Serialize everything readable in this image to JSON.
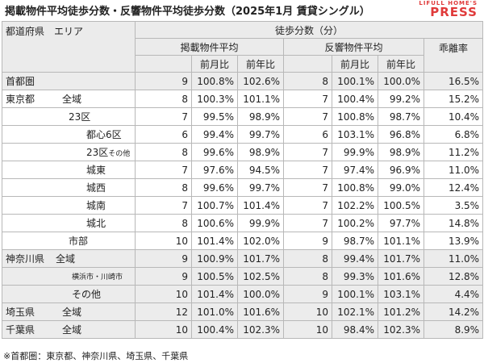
{
  "title": "掲載物件平均徒歩分数・反響物件平均徒歩分数（2025年1月 賃貸シングル）",
  "logo": {
    "top": "LIFULL HOME'S",
    "bottom": "PRESS"
  },
  "headers": {
    "area": "都道府県　エリア",
    "walk_minutes": "徒歩分数（分）",
    "listed_avg": "掲載物件平均",
    "response_avg": "反響物件平均",
    "divergence": "乖離率",
    "mom": "前月比",
    "yoy": "前年比"
  },
  "rows": [
    {
      "pref": "首都圏",
      "area": "",
      "l_min": "9",
      "l_mom": "100.8%",
      "l_yoy": "102.6%",
      "r_min": "8",
      "r_mom": "100.1%",
      "r_yoy": "100.0%",
      "div": "16.5%"
    },
    {
      "pref": "東京都",
      "area": "全域",
      "l_min": "8",
      "l_mom": "100.3%",
      "l_yoy": "101.1%",
      "r_min": "7",
      "r_mom": "100.4%",
      "r_yoy": "99.2%",
      "div": "15.2%"
    },
    {
      "pref": "",
      "area": "23区",
      "l_min": "7",
      "l_mom": "99.5%",
      "l_yoy": "98.9%",
      "r_min": "7",
      "r_mom": "100.8%",
      "r_yoy": "98.7%",
      "div": "10.4%"
    },
    {
      "pref": "",
      "area": "都心6区",
      "l_min": "6",
      "l_mom": "99.4%",
      "l_yoy": "99.7%",
      "r_min": "6",
      "r_mom": "103.1%",
      "r_yoy": "96.8%",
      "div": "6.8%"
    },
    {
      "pref": "",
      "area": "23区",
      "area_suffix": "その他",
      "l_min": "8",
      "l_mom": "99.6%",
      "l_yoy": "98.9%",
      "r_min": "7",
      "r_mom": "99.9%",
      "r_yoy": "98.9%",
      "div": "11.2%"
    },
    {
      "pref": "",
      "area": "城東",
      "l_min": "7",
      "l_mom": "97.6%",
      "l_yoy": "94.5%",
      "r_min": "7",
      "r_mom": "97.4%",
      "r_yoy": "96.9%",
      "div": "11.0%"
    },
    {
      "pref": "",
      "area": "城西",
      "l_min": "8",
      "l_mom": "99.6%",
      "l_yoy": "99.7%",
      "r_min": "7",
      "r_mom": "100.8%",
      "r_yoy": "99.0%",
      "div": "12.4%"
    },
    {
      "pref": "",
      "area": "城南",
      "l_min": "7",
      "l_mom": "100.7%",
      "l_yoy": "101.4%",
      "r_min": "7",
      "r_mom": "102.2%",
      "r_yoy": "100.5%",
      "div": "3.5%"
    },
    {
      "pref": "",
      "area": "城北",
      "l_min": "8",
      "l_mom": "100.6%",
      "l_yoy": "99.9%",
      "r_min": "7",
      "r_mom": "100.2%",
      "r_yoy": "97.7%",
      "div": "14.8%"
    },
    {
      "pref": "",
      "area": "市部",
      "l_min": "10",
      "l_mom": "101.4%",
      "l_yoy": "102.0%",
      "r_min": "9",
      "r_mom": "98.7%",
      "r_yoy": "101.1%",
      "div": "13.9%"
    },
    {
      "pref": "神奈川県",
      "area": "全域",
      "l_min": "9",
      "l_mom": "100.9%",
      "l_yoy": "101.7%",
      "r_min": "8",
      "r_mom": "99.4%",
      "r_yoy": "101.7%",
      "div": "11.0%"
    },
    {
      "pref": "",
      "area": "横浜市・川崎市",
      "l_min": "9",
      "l_mom": "100.5%",
      "l_yoy": "102.5%",
      "r_min": "8",
      "r_mom": "99.3%",
      "r_yoy": "101.6%",
      "div": "12.8%"
    },
    {
      "pref": "",
      "area": "その他",
      "l_min": "10",
      "l_mom": "101.4%",
      "l_yoy": "100.0%",
      "r_min": "9",
      "r_mom": "100.1%",
      "r_yoy": "103.1%",
      "div": "4.4%"
    },
    {
      "pref": "埼玉県",
      "area": "全域",
      "l_min": "12",
      "l_mom": "101.0%",
      "l_yoy": "101.6%",
      "r_min": "10",
      "r_mom": "102.1%",
      "r_yoy": "101.2%",
      "div": "14.2%"
    },
    {
      "pref": "千葉県",
      "area": "全域",
      "l_min": "10",
      "l_mom": "100.4%",
      "l_yoy": "102.3%",
      "r_min": "10",
      "r_mom": "98.4%",
      "r_yoy": "102.3%",
      "div": "8.9%"
    }
  ],
  "footnote": "※首都圏：東京都、神奈川県、埼玉県、千葉県"
}
